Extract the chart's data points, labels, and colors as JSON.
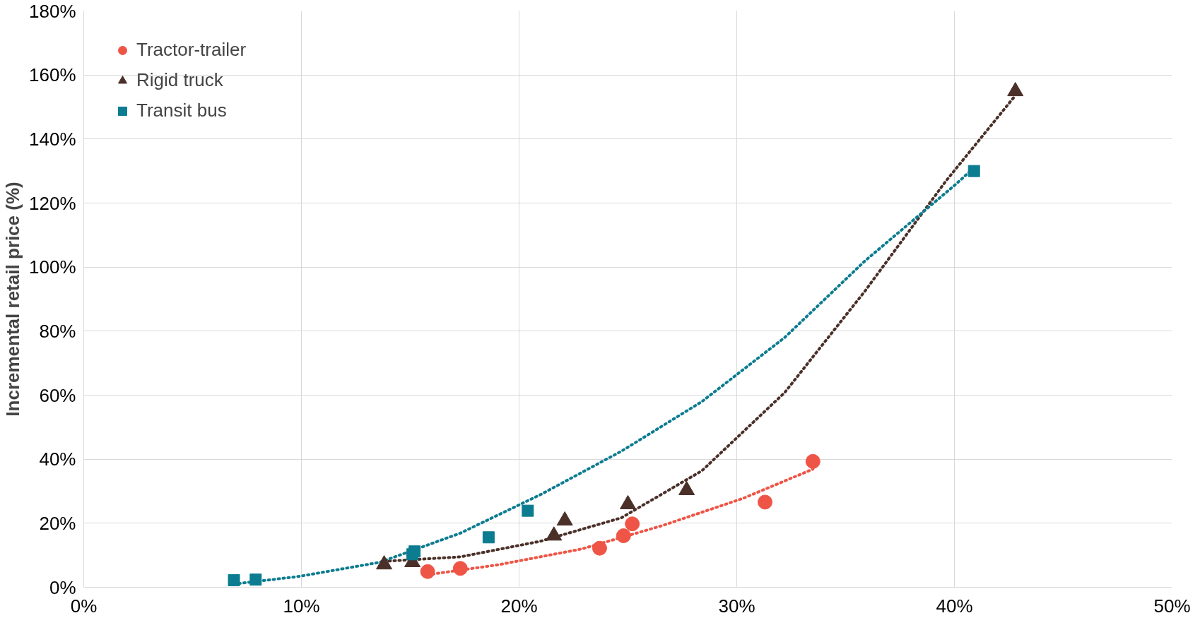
{
  "chart_data": {
    "type": "scatter",
    "ylabel": "Incremental retail price (%)",
    "xlim": [
      0,
      50
    ],
    "ylim": [
      0,
      180
    ],
    "xticks": [
      {
        "value": 0,
        "label": "0%"
      },
      {
        "value": 10,
        "label": "10%"
      },
      {
        "value": 20,
        "label": "20%"
      },
      {
        "value": 30,
        "label": "30%"
      },
      {
        "value": 40,
        "label": "40%"
      },
      {
        "value": 50,
        "label": "50%"
      }
    ],
    "yticks": [
      {
        "value": 0,
        "label": "0%"
      },
      {
        "value": 20,
        "label": "20%"
      },
      {
        "value": 40,
        "label": "40%"
      },
      {
        "value": 60,
        "label": "60%"
      },
      {
        "value": 80,
        "label": "80%"
      },
      {
        "value": 100,
        "label": "100%"
      },
      {
        "value": 120,
        "label": "120%"
      },
      {
        "value": 140,
        "label": "140%"
      },
      {
        "value": 160,
        "label": "160%"
      },
      {
        "value": 180,
        "label": "180%"
      }
    ],
    "grid": true,
    "legend": "top left",
    "series": [
      {
        "name": "Tractor-trailer",
        "color": "#ee5546",
        "marker": "circle",
        "x": [
          15.8,
          17.3,
          23.7,
          24.8,
          25.2,
          31.3,
          33.5
        ],
        "values": [
          4.9,
          5.9,
          12.2,
          16.1,
          19.8,
          26.6,
          39.3
        ]
      },
      {
        "name": "Rigid truck",
        "color": "#4a3029",
        "marker": "triangle",
        "x": [
          13.8,
          15.1,
          21.6,
          22.1,
          25.0,
          27.7,
          42.8
        ],
        "values": [
          7.1,
          7.8,
          16.1,
          20.8,
          25.9,
          30.3,
          154.9
        ]
      },
      {
        "name": "Transit bus",
        "color": "#0c7c90",
        "marker": "square",
        "x": [
          6.9,
          7.9,
          15.1,
          15.2,
          18.6,
          20.4,
          40.9
        ],
        "values": [
          2.2,
          2.4,
          10.3,
          11.2,
          15.6,
          23.9,
          130
        ]
      },
      {
        "type": "line",
        "line_style": "dotted",
        "color": "#ee5546",
        "x": [
          15.8,
          19.1,
          22.9,
          26.6,
          30.3,
          33.5
        ],
        "values": [
          3.9,
          7.1,
          12,
          19.3,
          27.8,
          36.9
        ]
      },
      {
        "type": "line",
        "line_style": "dotted",
        "color": "#4a3029",
        "x": [
          13.8,
          17.3,
          21,
          24.7,
          28.4,
          32.2,
          35.9,
          39.6,
          42.8
        ],
        "values": [
          8.1,
          9.5,
          14.4,
          21.7,
          36.4,
          60.8,
          92.6,
          126.8,
          153.6
        ]
      },
      {
        "type": "line",
        "line_style": "dotted",
        "color": "#0c7c90",
        "x": [
          6.9,
          9.9,
          13.6,
          17.3,
          21,
          24.7,
          28.4,
          32.2,
          35.9,
          40,
          40.9
        ],
        "values": [
          1.0,
          3.4,
          7.8,
          16.9,
          29,
          42.5,
          58,
          78,
          102,
          125.5,
          131
        ]
      }
    ]
  }
}
